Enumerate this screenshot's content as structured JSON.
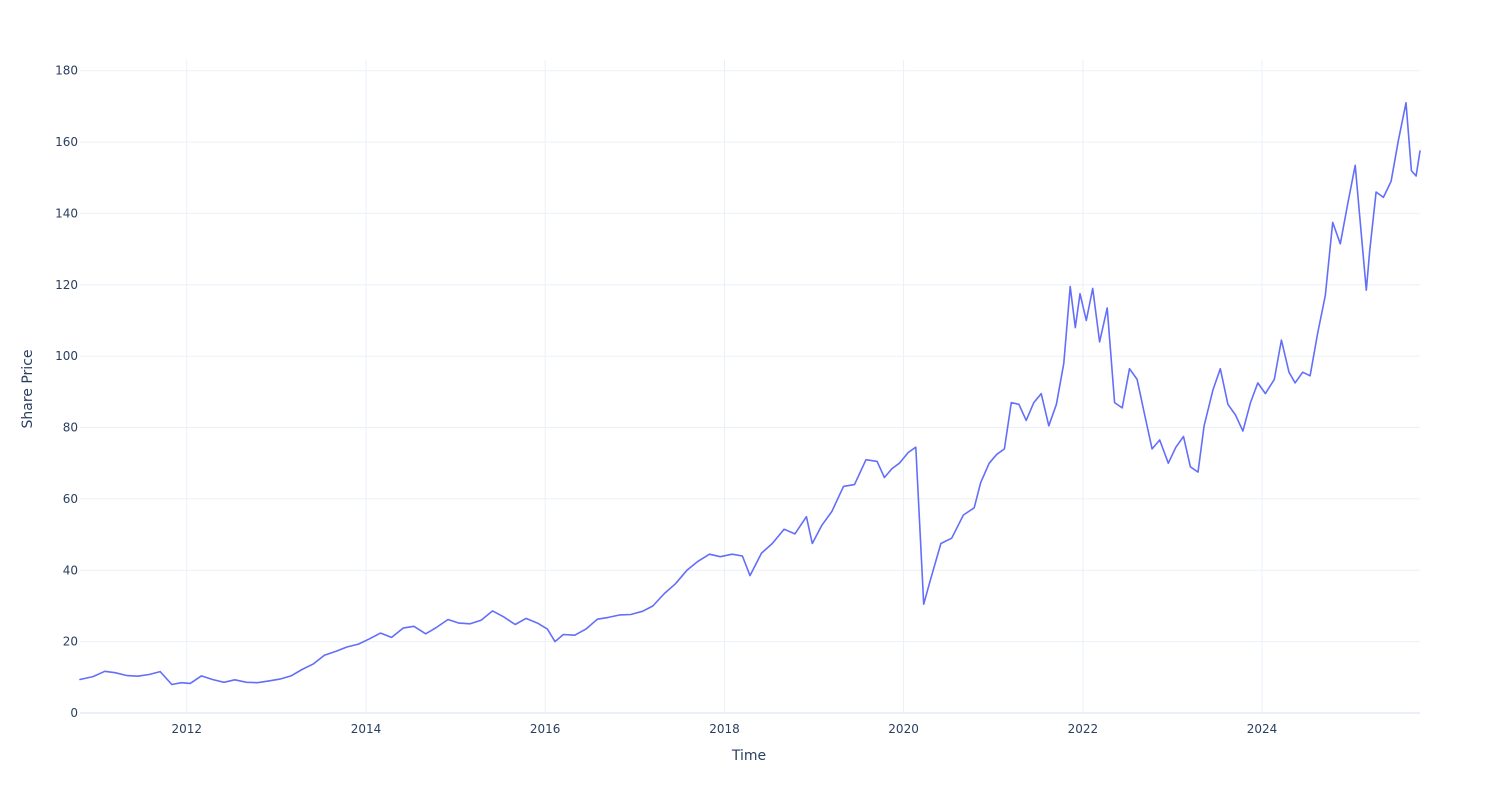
{
  "chart_data": {
    "type": "line",
    "title": "",
    "xlabel": "Time",
    "ylabel": "Share Price",
    "x_type": "date",
    "xlim": [
      "2010-10-23",
      "2025-10-06"
    ],
    "ylim": [
      0,
      183
    ],
    "x_ticks": [
      "2012",
      "2014",
      "2016",
      "2018",
      "2020",
      "2022",
      "2024"
    ],
    "y_ticks": [
      0,
      20,
      40,
      60,
      80,
      100,
      120,
      140,
      160,
      180
    ],
    "grid": true,
    "legend": "none",
    "colors": {
      "line": "#636efa",
      "grid": "#ebf0f8",
      "text": "#2a3f5f",
      "background": "#ffffff"
    },
    "series": [
      {
        "values": [
          [
            "2010-10-23",
            9.4
          ],
          [
            "2010-12-15",
            10.2
          ],
          [
            "2011-02-01",
            11.7
          ],
          [
            "2011-03-15",
            11.3
          ],
          [
            "2011-05-01",
            10.5
          ],
          [
            "2011-06-15",
            10.3
          ],
          [
            "2011-08-01",
            10.8
          ],
          [
            "2011-09-15",
            11.6
          ],
          [
            "2011-11-01",
            8.0
          ],
          [
            "2011-12-10",
            8.5
          ],
          [
            "2012-01-15",
            8.3
          ],
          [
            "2012-03-01",
            10.4
          ],
          [
            "2012-04-15",
            9.4
          ],
          [
            "2012-06-01",
            8.6
          ],
          [
            "2012-07-15",
            9.3
          ],
          [
            "2012-09-01",
            8.6
          ],
          [
            "2012-10-15",
            8.5
          ],
          [
            "2012-12-01",
            9.0
          ],
          [
            "2013-01-15",
            9.5
          ],
          [
            "2013-03-01",
            10.4
          ],
          [
            "2013-04-15",
            12.2
          ],
          [
            "2013-06-01",
            13.8
          ],
          [
            "2013-07-15",
            16.2
          ],
          [
            "2013-09-01",
            17.3
          ],
          [
            "2013-10-15",
            18.5
          ],
          [
            "2013-12-01",
            19.3
          ],
          [
            "2014-01-15",
            20.8
          ],
          [
            "2014-03-01",
            22.4
          ],
          [
            "2014-04-15",
            21.2
          ],
          [
            "2014-06-01",
            23.8
          ],
          [
            "2014-07-15",
            24.3
          ],
          [
            "2014-09-01",
            22.2
          ],
          [
            "2014-10-15",
            24.0
          ],
          [
            "2014-12-01",
            26.2
          ],
          [
            "2015-01-15",
            25.2
          ],
          [
            "2015-03-01",
            25.0
          ],
          [
            "2015-04-15",
            26.0
          ],
          [
            "2015-06-01",
            28.6
          ],
          [
            "2015-07-15",
            27.0
          ],
          [
            "2015-09-01",
            24.8
          ],
          [
            "2015-10-15",
            26.5
          ],
          [
            "2015-12-01",
            25.2
          ],
          [
            "2016-01-10",
            23.5
          ],
          [
            "2016-02-10",
            20.0
          ],
          [
            "2016-03-15",
            22.0
          ],
          [
            "2016-05-01",
            21.8
          ],
          [
            "2016-06-15",
            23.5
          ],
          [
            "2016-08-01",
            26.3
          ],
          [
            "2016-09-15",
            26.8
          ],
          [
            "2016-11-01",
            27.5
          ],
          [
            "2016-12-15",
            27.6
          ],
          [
            "2017-02-01",
            28.5
          ],
          [
            "2017-03-15",
            30.0
          ],
          [
            "2017-05-01",
            33.5
          ],
          [
            "2017-06-15",
            36.2
          ],
          [
            "2017-08-01",
            40.0
          ],
          [
            "2017-09-15",
            42.5
          ],
          [
            "2017-11-01",
            44.5
          ],
          [
            "2017-12-15",
            43.8
          ],
          [
            "2018-02-01",
            44.5
          ],
          [
            "2018-03-15",
            44.0
          ],
          [
            "2018-04-15",
            38.5
          ],
          [
            "2018-06-01",
            44.8
          ],
          [
            "2018-07-15",
            47.5
          ],
          [
            "2018-09-01",
            51.5
          ],
          [
            "2018-10-15",
            50.2
          ],
          [
            "2018-12-01",
            55.0
          ],
          [
            "2018-12-25",
            47.5
          ],
          [
            "2019-02-01",
            52.5
          ],
          [
            "2019-03-15",
            56.5
          ],
          [
            "2019-05-01",
            63.5
          ],
          [
            "2019-06-15",
            64.0
          ],
          [
            "2019-08-01",
            71.0
          ],
          [
            "2019-09-15",
            70.5
          ],
          [
            "2019-10-15",
            66.0
          ],
          [
            "2019-11-15",
            68.5
          ],
          [
            "2019-12-15",
            70.0
          ],
          [
            "2020-01-20",
            73.0
          ],
          [
            "2020-02-20",
            74.5
          ],
          [
            "2020-03-05",
            55.0
          ],
          [
            "2020-03-23",
            30.5
          ],
          [
            "2020-04-20",
            37.5
          ],
          [
            "2020-06-01",
            47.5
          ],
          [
            "2020-07-15",
            49.0
          ],
          [
            "2020-09-01",
            55.5
          ],
          [
            "2020-10-15",
            57.5
          ],
          [
            "2020-11-10",
            64.5
          ],
          [
            "2020-12-15",
            70.0
          ],
          [
            "2021-01-15",
            72.5
          ],
          [
            "2021-02-15",
            74.0
          ],
          [
            "2021-03-15",
            87.0
          ],
          [
            "2021-04-15",
            86.5
          ],
          [
            "2021-05-15",
            82.0
          ],
          [
            "2021-06-15",
            87.0
          ],
          [
            "2021-07-15",
            89.5
          ],
          [
            "2021-08-15",
            80.5
          ],
          [
            "2021-09-15",
            86.5
          ],
          [
            "2021-10-15",
            98.0
          ],
          [
            "2021-11-10",
            119.5
          ],
          [
            "2021-12-01",
            108.0
          ],
          [
            "2021-12-20",
            117.5
          ],
          [
            "2022-01-15",
            110.0
          ],
          [
            "2022-02-10",
            119.0
          ],
          [
            "2022-03-10",
            104.0
          ],
          [
            "2022-04-10",
            113.5
          ],
          [
            "2022-05-10",
            87.0
          ],
          [
            "2022-06-10",
            85.5
          ],
          [
            "2022-07-10",
            96.5
          ],
          [
            "2022-08-10",
            93.5
          ],
          [
            "2022-09-10",
            83.5
          ],
          [
            "2022-10-10",
            74.0
          ],
          [
            "2022-11-10",
            76.5
          ],
          [
            "2022-12-15",
            70.0
          ],
          [
            "2023-01-15",
            74.5
          ],
          [
            "2023-02-15",
            77.5
          ],
          [
            "2023-03-15",
            69.0
          ],
          [
            "2023-04-15",
            67.5
          ],
          [
            "2023-05-10",
            80.5
          ],
          [
            "2023-06-15",
            90.5
          ],
          [
            "2023-07-15",
            96.5
          ],
          [
            "2023-08-15",
            86.5
          ],
          [
            "2023-09-15",
            83.5
          ],
          [
            "2023-10-15",
            79.0
          ],
          [
            "2023-11-15",
            87.0
          ],
          [
            "2023-12-15",
            92.5
          ],
          [
            "2024-01-15",
            89.5
          ],
          [
            "2024-02-20",
            93.5
          ],
          [
            "2024-03-20",
            104.5
          ],
          [
            "2024-04-20",
            95.5
          ],
          [
            "2024-05-15",
            92.5
          ],
          [
            "2024-06-15",
            95.5
          ],
          [
            "2024-07-15",
            94.5
          ],
          [
            "2024-08-15",
            106.5
          ],
          [
            "2024-09-15",
            117.0
          ],
          [
            "2024-10-15",
            137.5
          ],
          [
            "2024-11-15",
            131.5
          ],
          [
            "2024-12-15",
            142.5
          ],
          [
            "2025-01-15",
            153.5
          ],
          [
            "2025-02-15",
            129.5
          ],
          [
            "2025-03-01",
            118.5
          ],
          [
            "2025-03-15",
            129.5
          ],
          [
            "2025-04-10",
            146.0
          ],
          [
            "2025-05-10",
            144.5
          ],
          [
            "2025-06-10",
            149.0
          ],
          [
            "2025-07-10",
            160.5
          ],
          [
            "2025-08-10",
            171.0
          ],
          [
            "2025-09-01",
            152.0
          ],
          [
            "2025-09-20",
            150.5
          ],
          [
            "2025-10-06",
            157.5
          ]
        ]
      }
    ]
  }
}
